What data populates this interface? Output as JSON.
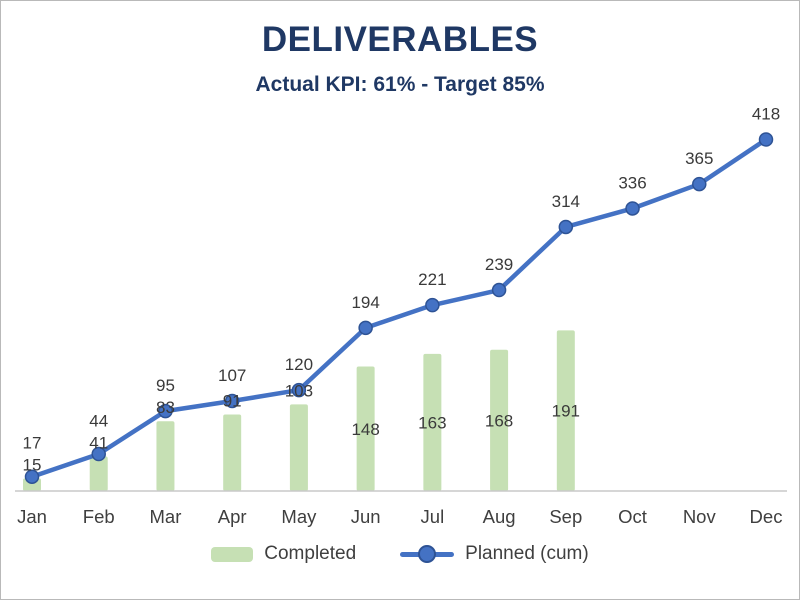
{
  "chart_data": {
    "type": "combo",
    "title": "DELIVERABLES",
    "subtitle": "Actual KPI: 61% - Target 85%",
    "categories": [
      "Jan",
      "Feb",
      "Mar",
      "Apr",
      "May",
      "Jun",
      "Jul",
      "Aug",
      "Sep",
      "Oct",
      "Nov",
      "Dec"
    ],
    "series": [
      {
        "name": "Completed",
        "type": "bar",
        "color": "#c6e0b4",
        "values": [
          15,
          41,
          83,
          91,
          103,
          148,
          163,
          168,
          191,
          null,
          null,
          null
        ]
      },
      {
        "name": "Planned (cum)",
        "type": "line",
        "color": "#4472c4",
        "marker_border_color": "#2e5395",
        "values": [
          17,
          44,
          95,
          107,
          120,
          194,
          221,
          239,
          314,
          336,
          365,
          418
        ]
      }
    ],
    "ylim": [
      0,
      440
    ],
    "grid": false,
    "legend_position": "bottom",
    "axis_color": "#c9c9c9",
    "label_color": "#3a3a3a",
    "axis_label_color": "#3f3f3f",
    "title_color": "#1f3864"
  }
}
